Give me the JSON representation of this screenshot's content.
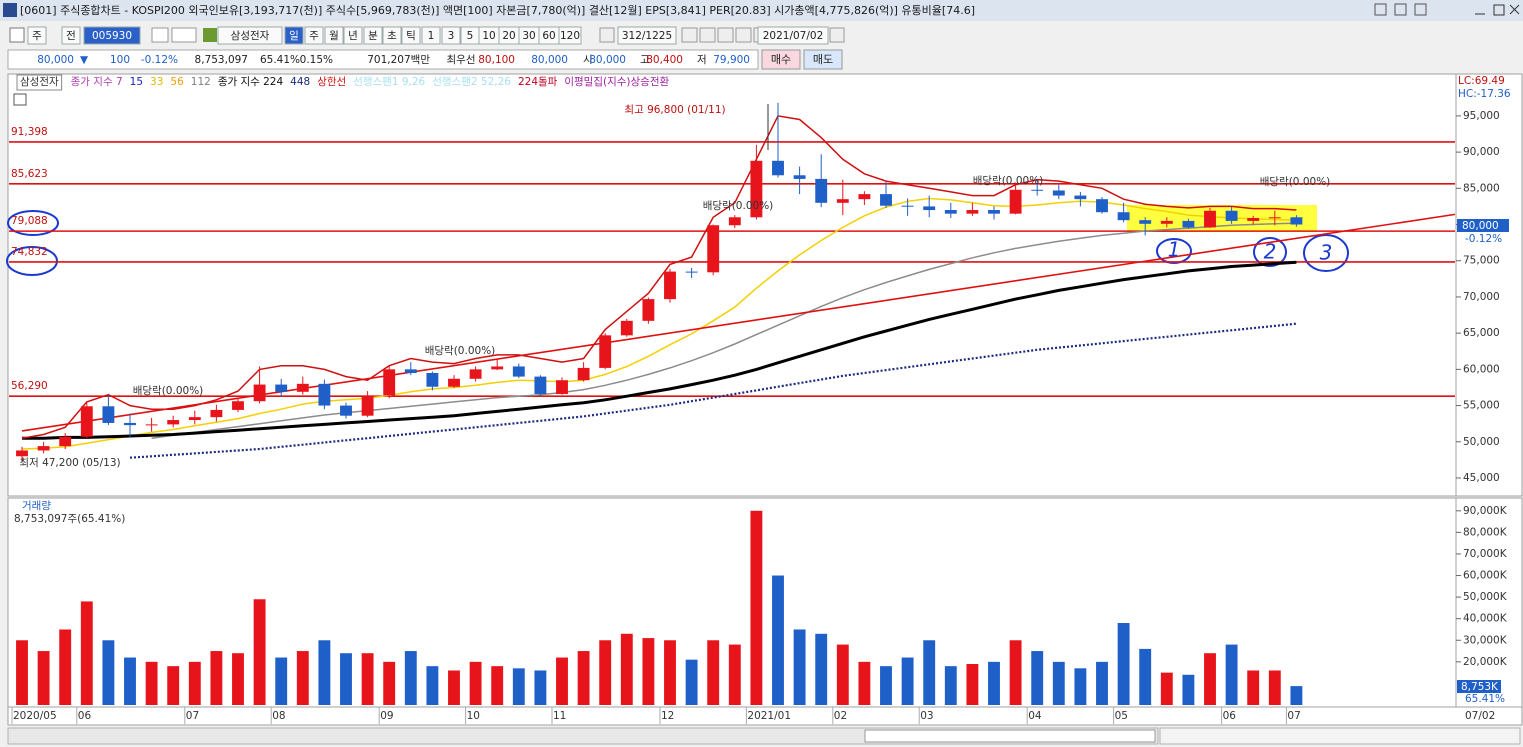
{
  "header": {
    "title": "[0601] 주식종합차트 - KOSPI200 외국인보유[3,193,717(천)] 주식수[5,969,783(천)] 액면[100] 자본금[7,780(억)] 결산[12월] EPS[3,841] PER[20.83] 시가총액[4,775,826(억)] 유통비율[74.6]",
    "toolbar": [
      "주",
      "전",
      "005930",
      "삼성전자",
      "일",
      "주",
      "월",
      "년",
      "분",
      "초",
      "틱",
      "1",
      "3",
      "5",
      "10",
      "20",
      "30",
      "60",
      "120",
      "312/1225",
      "2021/07/02"
    ],
    "quote": [
      "80,000",
      "▼",
      "100",
      "-0.12%",
      "8,753,097",
      "65.41%",
      "0.15%",
      "701,207백만",
      "최우선",
      "80,100",
      "80,000",
      "시",
      "80,000",
      "고",
      "80,400",
      "저",
      "79,900"
    ],
    "buttons": [
      "매수",
      "매도"
    ],
    "legend_row": [
      {
        "text": "삼성전자",
        "color": "#333333"
      },
      {
        "text": "종가 지수 7",
        "color": "#b03cb0"
      },
      {
        "text": "15",
        "color": "#2020c0"
      },
      {
        "text": "33",
        "color": "#e0b800"
      },
      {
        "text": "56",
        "color": "#f0a000"
      },
      {
        "text": "112",
        "color": "#808080"
      },
      {
        "text": "종가 지수 224",
        "color": "#111111"
      },
      {
        "text": "448",
        "color": "#1a2a80"
      },
      {
        "text": "상한선",
        "color": "#d01010"
      },
      {
        "text": "선행스팬1 9,26",
        "color": "#a8e0f0"
      },
      {
        "text": "선행스팬2 52,26",
        "color": "#a8e0f0"
      },
      {
        "text": "224돌파",
        "color": "#c00020"
      },
      {
        "text": "이평밀집(지수)상승전환",
        "color": "#a020a0"
      }
    ],
    "handwritten": [
      "1",
      "2",
      "3"
    ]
  },
  "chart_data": [
    {
      "type": "candlestick",
      "categories": [
        "2020/05",
        null,
        null,
        "06",
        null,
        null,
        null,
        null,
        "07",
        null,
        null,
        null,
        "08",
        null,
        null,
        null,
        null,
        "09",
        null,
        null,
        null,
        "10",
        null,
        null,
        null,
        "11",
        null,
        null,
        null,
        null,
        "12",
        null,
        null,
        null,
        "2021/01",
        null,
        null,
        null,
        "02",
        null,
        null,
        null,
        "03",
        null,
        null,
        null,
        null,
        "04",
        null,
        null,
        null,
        "05",
        null,
        null,
        null,
        null,
        "06",
        null,
        null,
        "07"
      ],
      "open": [
        48000,
        48800,
        49400,
        50700,
        54900,
        52600,
        52300,
        52400,
        53000,
        53400,
        54400,
        55600,
        57900,
        56900,
        58000,
        55000,
        53600,
        56400,
        60000,
        59500,
        57600,
        58700,
        60000,
        60400,
        59000,
        56600,
        58500,
        60200,
        64700,
        66700,
        69700,
        73500,
        73400,
        79900,
        81000,
        88800,
        86800,
        86300,
        83000,
        83500,
        84200,
        82600,
        82500,
        82000,
        81500,
        82000,
        81500,
        84800,
        84700,
        84000,
        83500,
        81700,
        80600,
        80100,
        80500,
        79600,
        81900,
        80500,
        80900,
        81000
      ],
      "high": [
        49300,
        50000,
        51200,
        55400,
        56500,
        53900,
        53300,
        53600,
        54300,
        55100,
        55900,
        60400,
        58700,
        59000,
        58600,
        55400,
        57000,
        60400,
        61000,
        59700,
        59200,
        60400,
        61400,
        60800,
        59200,
        58900,
        61000,
        65000,
        67000,
        69900,
        73900,
        74000,
        80000,
        81300,
        91000,
        96800,
        88000,
        89700,
        86200,
        84600,
        86000,
        83600,
        84000,
        83000,
        83000,
        82500,
        85800,
        86200,
        85500,
        84500,
        83800,
        83000,
        81000,
        81000,
        80800,
        82300,
        82500,
        81200,
        81900,
        81300
      ],
      "low": [
        47200,
        48400,
        49000,
        50500,
        52300,
        50700,
        51400,
        52000,
        52400,
        52800,
        54100,
        55300,
        56200,
        56500,
        54500,
        53200,
        53400,
        56000,
        59200,
        57100,
        57400,
        58300,
        59900,
        58800,
        56200,
        56500,
        58300,
        60000,
        64500,
        66300,
        69200,
        72600,
        73000,
        79500,
        80700,
        86500,
        84200,
        82400,
        81300,
        82700,
        82300,
        81200,
        81000,
        80900,
        81200,
        80700,
        81400,
        84000,
        83500,
        82500,
        81500,
        80300,
        78500,
        79600,
        79400,
        79500,
        80100,
        80000,
        79900,
        79700
      ],
      "close": [
        48800,
        49400,
        50700,
        54900,
        52600,
        52300,
        52400,
        53000,
        53400,
        54400,
        55600,
        57900,
        56900,
        58000,
        55000,
        53600,
        56400,
        60000,
        59500,
        57600,
        58700,
        60000,
        60400,
        59000,
        56600,
        58500,
        60200,
        64700,
        66700,
        69700,
        73500,
        73400,
        79900,
        81000,
        88800,
        86800,
        86300,
        83000,
        83500,
        84200,
        82600,
        82500,
        82000,
        81500,
        82000,
        81500,
        84800,
        84700,
        84000,
        83500,
        81700,
        80600,
        80100,
        80500,
        79600,
        81900,
        80500,
        80900,
        81000,
        80000
      ],
      "up_color": "#e8141b",
      "down_color": "#1f5fc8",
      "series": [
        {
          "color": "#f5d000",
          "style": "solid",
          "values": [
            49000,
            49100,
            49300,
            49800,
            50300,
            50800,
            51300,
            51700,
            52200,
            52700,
            53200,
            53900,
            54500,
            55200,
            55600,
            55800,
            56000,
            56400,
            56900,
            57300,
            57500,
            57800,
            58200,
            58500,
            58400,
            58300,
            58500,
            59300,
            60400,
            61800,
            63400,
            64900,
            66700,
            68600,
            71200,
            73600,
            75800,
            77800,
            79600,
            81200,
            82400,
            83200,
            83600,
            83400,
            83000,
            82600,
            82500,
            82700,
            83000,
            83200,
            83100,
            82700,
            82200,
            81800,
            81300,
            81100,
            80900,
            80800,
            80700,
            80600
          ]
        },
        {
          "color": "#8c8c8c",
          "style": "solid",
          "values": [
            null,
            null,
            null,
            null,
            null,
            null,
            50500,
            50900,
            51300,
            51700,
            52100,
            52500,
            52900,
            53300,
            53700,
            54000,
            54300,
            54600,
            54900,
            55200,
            55500,
            55800,
            56100,
            56300,
            56500,
            56800,
            57200,
            57800,
            58500,
            59300,
            60200,
            61200,
            62300,
            63500,
            64800,
            66100,
            67400,
            68700,
            69900,
            71000,
            72000,
            72900,
            73800,
            74600,
            75400,
            76100,
            76700,
            77200,
            77700,
            78100,
            78500,
            78800,
            79100,
            79300,
            79500,
            79700,
            79900,
            80000,
            80100,
            80200
          ]
        },
        {
          "color": "#000000",
          "style": "bold",
          "values": [
            50500,
            50500,
            50600,
            50600,
            50700,
            50800,
            50900,
            51000,
            51200,
            51400,
            51600,
            51800,
            52000,
            52200,
            52400,
            52600,
            52800,
            53000,
            53200,
            53400,
            53600,
            53900,
            54200,
            54500,
            54800,
            55100,
            55400,
            55800,
            56300,
            56800,
            57300,
            57900,
            58500,
            59200,
            60000,
            60900,
            61800,
            62700,
            63600,
            64500,
            65300,
            66100,
            66900,
            67600,
            68300,
            69000,
            69700,
            70300,
            70900,
            71400,
            71900,
            72400,
            72800,
            73200,
            73600,
            73900,
            74200,
            74400,
            74600,
            74800
          ]
        },
        {
          "color": "#1a2a80",
          "style": "dotted",
          "values": [
            null,
            null,
            null,
            null,
            null,
            47800,
            48000,
            48200,
            48400,
            48600,
            48800,
            49000,
            49300,
            49600,
            49900,
            50200,
            50500,
            50800,
            51100,
            51400,
            51700,
            52000,
            52300,
            52600,
            52900,
            53200,
            53500,
            53900,
            54300,
            54700,
            55100,
            55600,
            56100,
            56600,
            57100,
            57600,
            58100,
            58600,
            59100,
            59500,
            59900,
            60300,
            60700,
            61100,
            61500,
            61900,
            62300,
            62700,
            63000,
            63300,
            63600,
            63900,
            64200,
            64500,
            64800,
            65100,
            65400,
            65700,
            66000,
            66300
          ]
        },
        {
          "color": "#d01010",
          "style": "solid",
          "values": [
            50500,
            51000,
            52000,
            55500,
            56500,
            55000,
            54500,
            54500,
            55000,
            55800,
            57000,
            60000,
            60500,
            60500,
            60000,
            59000,
            58500,
            60500,
            61500,
            61000,
            60800,
            61500,
            62000,
            62000,
            61500,
            61000,
            61500,
            65500,
            68000,
            70500,
            74500,
            75500,
            81000,
            83000,
            89000,
            95000,
            94500,
            92000,
            89000,
            87000,
            86000,
            85500,
            85000,
            84500,
            84000,
            84000,
            85500,
            86200,
            86000,
            85500,
            85000,
            83500,
            82800,
            82500,
            82300,
            82500,
            82500,
            82200,
            82200,
            82000
          ]
        }
      ],
      "trend_line": [
        51500,
        81400
      ],
      "levels": [
        {
          "value": 91398,
          "label": "91,398"
        },
        {
          "value": 85623,
          "label": "85,623"
        },
        {
          "value": 79088,
          "label": "79,088"
        },
        {
          "value": 74832,
          "label": "74,832"
        },
        {
          "value": 56290,
          "label": "56,290"
        }
      ],
      "annotations": [
        "최고 96,800 (01/11)",
        "최저 47,200 (05/13)",
        "배당락(0.00%)",
        "배당락(0.00%)",
        "배당락(0.00%)",
        "배당락(0.00%)",
        "배당락(0.00%)"
      ],
      "indicators": [
        "LC:69.49",
        "HC:-17.36"
      ],
      "current_label": "80,000",
      "current_change": "-0.12%",
      "ylim": [
        42650,
        98300
      ],
      "yticks": [
        {
          "value": 45000,
          "label": "45,000"
        },
        {
          "value": 50000,
          "label": "50,000"
        },
        {
          "value": 55000,
          "label": "55,000"
        },
        {
          "value": 60000,
          "label": "60,000"
        },
        {
          "value": 65000,
          "label": "65,000"
        },
        {
          "value": 70000,
          "label": "70,000"
        },
        {
          "value": 75000,
          "label": "75,000"
        },
        {
          "value": 80000,
          "label": "80,000"
        },
        {
          "value": 85000,
          "label": "85,000"
        },
        {
          "value": 90000,
          "label": "90,000"
        },
        {
          "value": 95000,
          "label": "95,000"
        }
      ],
      "x_end_label": "07/02"
    },
    {
      "type": "bar",
      "title": "거래량",
      "subtitle": "8,753,097주(65.41%)",
      "values": [
        30000,
        25000,
        35000,
        48000,
        30000,
        22000,
        20000,
        18000,
        20000,
        25000,
        24000,
        49000,
        22000,
        25000,
        30000,
        24000,
        24000,
        20000,
        25000,
        18000,
        16000,
        20000,
        18000,
        17000,
        16000,
        22000,
        25000,
        30000,
        33000,
        31000,
        30000,
        21000,
        30000,
        28000,
        90000,
        60000,
        35000,
        33000,
        28000,
        20000,
        18000,
        22000,
        30000,
        18000,
        19000,
        20000,
        30000,
        25000,
        20000,
        17000,
        20000,
        38000,
        26000,
        15000,
        14000,
        24000,
        28000,
        16000,
        16000,
        8753.097
      ],
      "current_label": "8,753K",
      "current_ratio": "65.41%",
      "ylim": [
        0,
        95000
      ],
      "yticks": [
        {
          "value": 20000,
          "label": "20,000K"
        },
        {
          "value": 30000,
          "label": "30,000K"
        },
        {
          "value": 40000,
          "label": "40,000K"
        },
        {
          "value": 50000,
          "label": "50,000K"
        },
        {
          "value": 60000,
          "label": "60,000K"
        },
        {
          "value": 70000,
          "label": "70,000K"
        },
        {
          "value": 80000,
          "label": "80,000K"
        },
        {
          "value": 90000,
          "label": "90,000K"
        }
      ]
    }
  ]
}
